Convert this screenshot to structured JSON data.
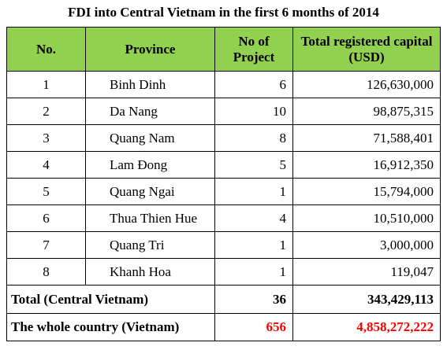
{
  "title": "FDI into Central Vietnam in the first 6 months of 2014",
  "header": {
    "no": "No.",
    "province": "Province",
    "projects": "No of Project",
    "capital": "Total registered capital (USD)",
    "background_color": "#92d050"
  },
  "rows": [
    {
      "no": "1",
      "province": "Binh Dinh",
      "projects": "6",
      "capital": "126,630,000"
    },
    {
      "no": "2",
      "province": "Da Nang",
      "projects": "10",
      "capital": "98,875,315"
    },
    {
      "no": "3",
      "province": "Quang Nam",
      "projects": "8",
      "capital": "71,588,401"
    },
    {
      "no": "4",
      "province": "Lam Đong",
      "projects": "5",
      "capital": "16,912,350"
    },
    {
      "no": "5",
      "province": "Quang Ngai",
      "projects": "1",
      "capital": "15,794,000"
    },
    {
      "no": "6",
      "province": "Thua Thien Hue",
      "projects": "4",
      "capital": "10,510,000"
    },
    {
      "no": "7",
      "province": "Quang Tri",
      "projects": "1",
      "capital": "3,000,000"
    },
    {
      "no": "8",
      "province": "Khanh Hoa",
      "projects": "1",
      "capital": "119,047"
    }
  ],
  "total": {
    "label": "Total (Central Vietnam)",
    "projects": "36",
    "capital": "343,429,113"
  },
  "country": {
    "label": "The whole country (Vietnam)",
    "projects": "656",
    "capital": "4,858,272,222",
    "highlight_color": "#ff0000"
  }
}
